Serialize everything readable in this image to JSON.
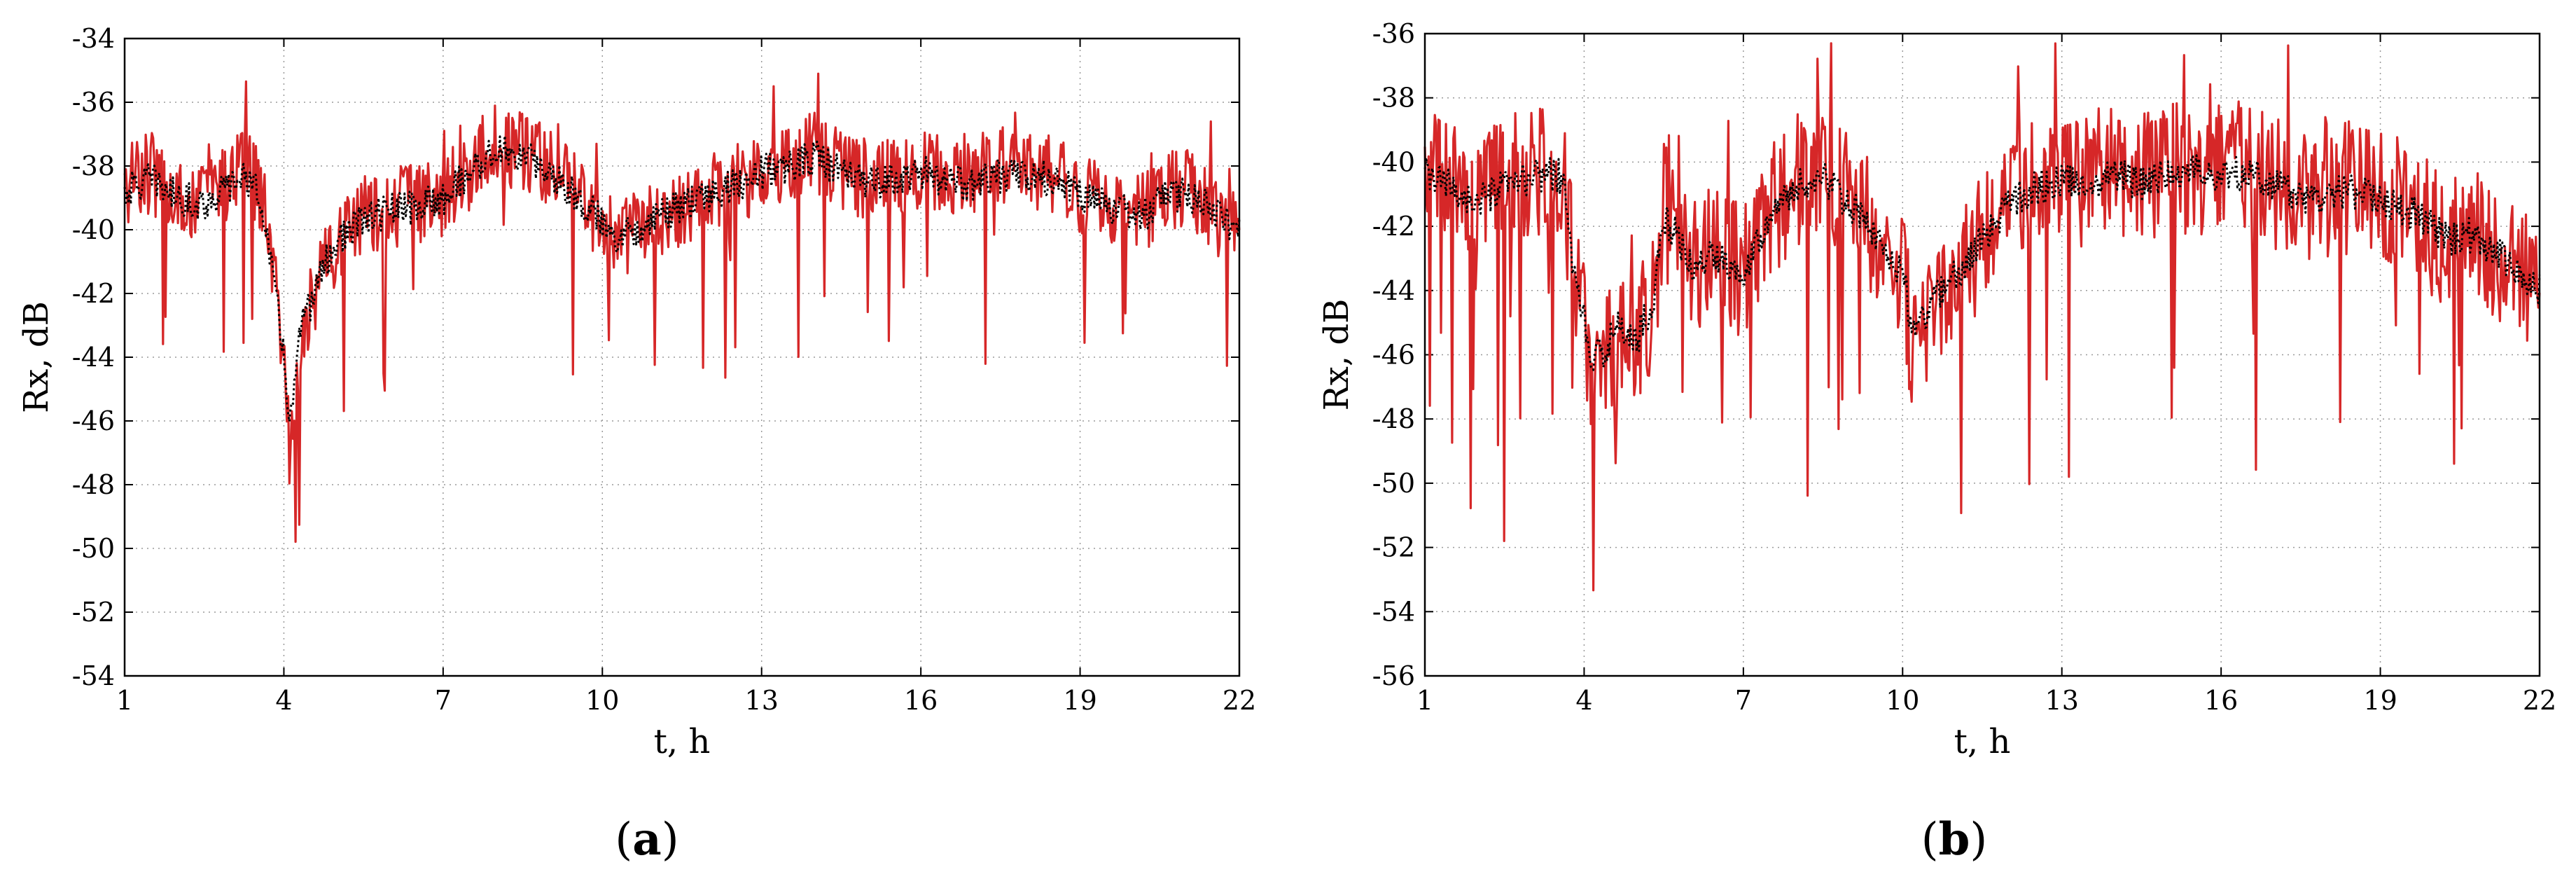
{
  "colors": {
    "measured": "#d62728",
    "smoothed": "#000000",
    "grid": "#9a9a9a",
    "frame": "#000000"
  },
  "panels": [
    {
      "label_pre": "(",
      "label_letter": "a",
      "label_post": ")"
    },
    {
      "label_pre": "(",
      "label_letter": "b",
      "label_post": ")"
    }
  ],
  "chart_data": [
    {
      "type": "line",
      "xlabel": "t, h",
      "ylabel": "Rx, dB",
      "xlim": [
        1,
        22
      ],
      "ylim": [
        -54,
        -34
      ],
      "xticks": [
        1,
        4,
        7,
        10,
        13,
        16,
        19,
        22
      ],
      "yticks": [
        -54,
        -52,
        -50,
        -48,
        -46,
        -44,
        -42,
        -40,
        -38,
        -36,
        -34
      ],
      "grid": true,
      "series": [
        {
          "style": "solid",
          "color": "#d62728",
          "x": [
            1,
            1.5,
            2,
            2.5,
            3,
            3.3,
            3.6,
            3.8,
            4,
            4.1,
            4.2,
            4.3,
            4.5,
            4.7,
            5,
            5.5,
            6,
            6.5,
            7,
            7.5,
            8,
            8.5,
            9,
            9.5,
            10,
            10.3,
            10.6,
            11,
            11.5,
            12,
            12.5,
            13,
            13.5,
            14,
            14.5,
            15,
            15.5,
            16,
            16.5,
            17,
            17.5,
            18,
            18.5,
            19,
            19.5,
            20,
            20.3,
            20.6,
            21,
            21.5,
            22
          ],
          "y": [
            -38.6,
            -38.2,
            -38.9,
            -39.1,
            -38.4,
            -38,
            -39,
            -41.5,
            -44,
            -47,
            -45.5,
            -43.5,
            -42.5,
            -41.5,
            -40.5,
            -39.6,
            -39.3,
            -39.2,
            -38.9,
            -38.1,
            -37.3,
            -37.6,
            -38.1,
            -38.8,
            -39.9,
            -40.4,
            -40.1,
            -39.7,
            -39.3,
            -38.9,
            -38.6,
            -38.1,
            -37.9,
            -37.6,
            -38.1,
            -38.4,
            -38.3,
            -38.1,
            -38.4,
            -38.6,
            -38.1,
            -38.2,
            -38.3,
            -38.9,
            -39.1,
            -39.6,
            -39.4,
            -38.9,
            -38.7,
            -39.4,
            -40.1
          ],
          "values_are_approximate": true
        },
        {
          "style": "dotted",
          "color": "#000000",
          "x": [
            1,
            1.5,
            2,
            2.5,
            3,
            3.3,
            3.6,
            3.8,
            4,
            4.1,
            4.2,
            4.3,
            4.5,
            4.7,
            5,
            5.5,
            6,
            6.5,
            7,
            7.5,
            8,
            8.5,
            9,
            9.5,
            10,
            10.3,
            10.6,
            11,
            11.5,
            12,
            12.5,
            13,
            13.5,
            14,
            14.5,
            15,
            15.5,
            16,
            16.5,
            17,
            17.5,
            18,
            18.5,
            19,
            19.5,
            20,
            20.3,
            20.6,
            21,
            21.5,
            22
          ],
          "y": [
            -38.8,
            -38.4,
            -39,
            -39.2,
            -38.6,
            -38.3,
            -39.2,
            -41.6,
            -43.9,
            -46,
            -45,
            -43.3,
            -42.3,
            -41.3,
            -40.4,
            -39.7,
            -39.4,
            -39.3,
            -39,
            -38.2,
            -37.5,
            -37.7,
            -38.2,
            -38.9,
            -39.8,
            -40.2,
            -40,
            -39.6,
            -39.3,
            -38.9,
            -38.6,
            -38.2,
            -38,
            -37.7,
            -38.2,
            -38.5,
            -38.4,
            -38.2,
            -38.5,
            -38.6,
            -38.3,
            -38.3,
            -38.4,
            -38.9,
            -39.2,
            -39.6,
            -39.4,
            -39,
            -38.8,
            -39.4,
            -40
          ],
          "values_are_approximate": true
        }
      ]
    },
    {
      "type": "line",
      "xlabel": "t, h",
      "ylabel": "Rx, dB",
      "xlim": [
        1,
        22
      ],
      "ylim": [
        -56,
        -36
      ],
      "xticks": [
        1,
        4,
        7,
        10,
        13,
        16,
        19,
        22
      ],
      "yticks": [
        -56,
        -54,
        -52,
        -50,
        -48,
        -46,
        -44,
        -42,
        -40,
        -38,
        -36
      ],
      "grid": true,
      "series": [
        {
          "style": "solid",
          "color": "#d62728",
          "x": [
            1,
            1.5,
            2,
            2.5,
            3,
            3.3,
            3.6,
            3.8,
            4,
            4.1,
            4.3,
            4.6,
            5,
            5.3,
            5.5,
            5.8,
            6,
            6.5,
            7,
            7.5,
            8,
            8.5,
            9,
            9.5,
            10,
            10.2,
            10.5,
            10.8,
            11,
            11.5,
            12,
            12.5,
            13,
            13.5,
            14,
            14.5,
            15,
            15.5,
            16,
            16.5,
            17,
            17.5,
            18,
            18.5,
            19,
            19.5,
            20,
            20.3,
            20.6,
            21,
            21.5,
            22
          ],
          "y": [
            -40.2,
            -40.6,
            -41.2,
            -40.6,
            -40.3,
            -40.1,
            -40.3,
            -43.5,
            -45,
            -47,
            -46.5,
            -45.5,
            -45.8,
            -44.5,
            -41.5,
            -42.3,
            -43.3,
            -42.8,
            -43.5,
            -41.5,
            -40.6,
            -40.3,
            -41.2,
            -42.3,
            -43.5,
            -46,
            -45,
            -44,
            -43.8,
            -42.3,
            -41.2,
            -40.6,
            -40.4,
            -40.6,
            -40.1,
            -40.6,
            -40.3,
            -40.1,
            -40.3,
            -40.1,
            -40.6,
            -41,
            -40.9,
            -40.8,
            -41.1,
            -41.4,
            -42.1,
            -42.6,
            -42.1,
            -42.5,
            -43.2,
            -44.2
          ],
          "values_are_approximate": true
        },
        {
          "style": "dotted",
          "color": "#000000",
          "x": [
            1,
            1.5,
            2,
            2.5,
            3,
            3.3,
            3.6,
            3.8,
            4,
            4.1,
            4.3,
            4.6,
            5,
            5.3,
            5.5,
            5.8,
            6,
            6.5,
            7,
            7.5,
            8,
            8.5,
            9,
            9.5,
            10,
            10.2,
            10.5,
            10.8,
            11,
            11.5,
            12,
            12.5,
            13,
            13.5,
            14,
            14.5,
            15,
            15.5,
            16,
            16.5,
            17,
            17.5,
            18,
            18.5,
            19,
            19.5,
            20,
            20.3,
            20.6,
            21,
            21.5,
            22
          ],
          "y": [
            -40.4,
            -40.8,
            -41.3,
            -40.8,
            -40.5,
            -40.3,
            -40.5,
            -43.4,
            -44.8,
            -46.3,
            -46,
            -45.2,
            -45.5,
            -44.3,
            -41.8,
            -42.4,
            -43.3,
            -42.9,
            -43.4,
            -41.6,
            -40.8,
            -40.5,
            -41.3,
            -42.4,
            -43.4,
            -45.4,
            -44.6,
            -43.8,
            -43.6,
            -42.4,
            -41.3,
            -40.8,
            -40.6,
            -40.7,
            -40.3,
            -40.7,
            -40.4,
            -40.3,
            -40.4,
            -40.3,
            -40.7,
            -41.1,
            -41,
            -40.9,
            -41.2,
            -41.5,
            -42.1,
            -42.5,
            -42.2,
            -42.6,
            -43.2,
            -44
          ],
          "values_are_approximate": true
        }
      ]
    }
  ]
}
